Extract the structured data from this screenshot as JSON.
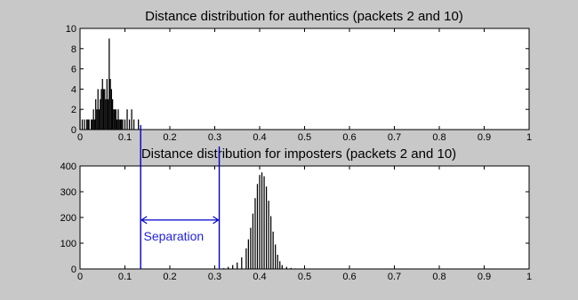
{
  "colors": {
    "figure_background": "#c8c8c8",
    "axes_background": "#ffffff",
    "bars": "#000000",
    "annotation": "#0000cc",
    "annotation_text": "#2222dd"
  },
  "chart_data": [
    {
      "type": "bar",
      "title": "Distance distribution for authentics (packets 2 and 10)",
      "xlabel": "",
      "ylabel": "",
      "xlim": [
        0,
        1
      ],
      "ylim": [
        0,
        10
      ],
      "grid": false,
      "xticks": [
        0,
        0.1,
        0.2,
        0.3,
        0.4,
        0.5,
        0.6,
        0.7,
        0.8,
        0.9,
        1
      ],
      "xtick_labels": [
        "0",
        "0.1",
        "0.2",
        "0.3",
        "0.4",
        "0.5",
        "0.6",
        "0.7",
        "0.8",
        "0.9",
        "1"
      ],
      "yticks": [
        0,
        2,
        4,
        6,
        8,
        10
      ],
      "ytick_labels": [
        "0",
        "2",
        "4",
        "6",
        "8",
        "10"
      ],
      "bin_width": 0.0025,
      "x": [
        0.0,
        0.005,
        0.01,
        0.0125,
        0.015,
        0.0175,
        0.02,
        0.0225,
        0.025,
        0.0275,
        0.03,
        0.0325,
        0.035,
        0.0375,
        0.04,
        0.0425,
        0.045,
        0.0475,
        0.05,
        0.0525,
        0.055,
        0.0575,
        0.06,
        0.0625,
        0.065,
        0.0675,
        0.07,
        0.0725,
        0.075,
        0.0775,
        0.08,
        0.0825,
        0.085,
        0.0875,
        0.09,
        0.0925,
        0.095,
        0.1,
        0.105,
        0.11,
        0.115,
        0.12,
        0.13
      ],
      "values": [
        2,
        1,
        1,
        0,
        1,
        1,
        1,
        0,
        1,
        1,
        2,
        1,
        3,
        2,
        4,
        2,
        3,
        4,
        5,
        4,
        4,
        3,
        5,
        3,
        9,
        5,
        4,
        3,
        2,
        2,
        2,
        1,
        2,
        1,
        1,
        1,
        1,
        1,
        2,
        1,
        2,
        1,
        1
      ]
    },
    {
      "type": "bar",
      "title": "Distance distribution for imposters (packets 2 and 10)",
      "xlabel": "",
      "ylabel": "",
      "xlim": [
        0,
        1
      ],
      "ylim": [
        0,
        400
      ],
      "grid": false,
      "xticks": [
        0,
        0.1,
        0.2,
        0.3,
        0.4,
        0.5,
        0.6,
        0.7,
        0.8,
        0.9,
        1
      ],
      "xtick_labels": [
        "0",
        "0.1",
        "0.2",
        "0.3",
        "0.4",
        "0.5",
        "0.6",
        "0.7",
        "0.8",
        "0.9",
        "1"
      ],
      "yticks": [
        0,
        100,
        200,
        300,
        400
      ],
      "ytick_labels": [
        "0",
        "100",
        "200",
        "300",
        "400"
      ],
      "bin_width": 0.0025,
      "x": [
        0.32,
        0.33,
        0.34,
        0.35,
        0.36,
        0.37,
        0.375,
        0.38,
        0.385,
        0.39,
        0.395,
        0.4,
        0.405,
        0.41,
        0.415,
        0.42,
        0.425,
        0.43,
        0.435,
        0.44,
        0.445,
        0.45,
        0.46,
        0.47,
        0.48
      ],
      "values": [
        3,
        8,
        15,
        25,
        45,
        80,
        115,
        160,
        215,
        275,
        330,
        365,
        375,
        360,
        320,
        265,
        205,
        145,
        95,
        55,
        30,
        15,
        8,
        4,
        2
      ],
      "annotations": {
        "separation_label": "Separation",
        "separation_start": 0.135,
        "separation_end": 0.31,
        "arrow_y": 190
      }
    }
  ]
}
